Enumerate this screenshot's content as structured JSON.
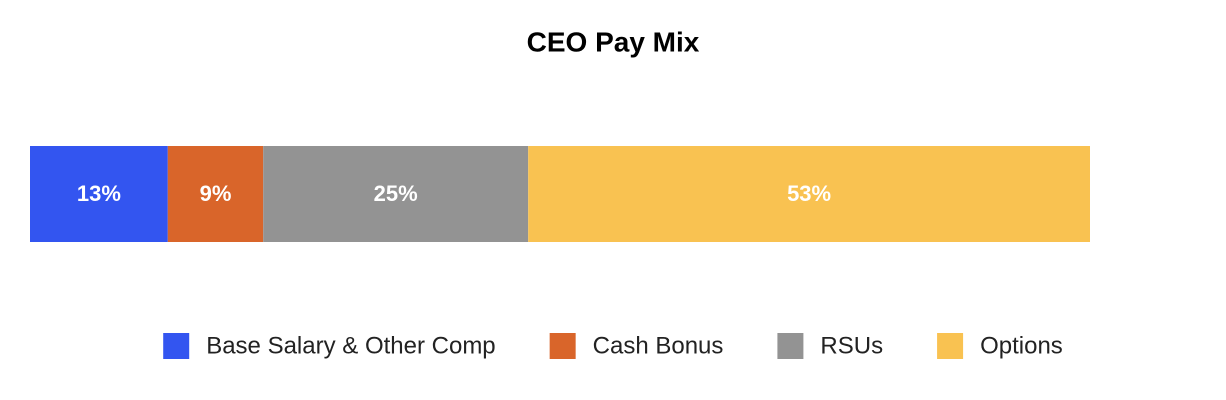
{
  "chart_data": {
    "type": "bar",
    "orientation": "horizontal",
    "stacked": true,
    "title": "CEO Pay Mix",
    "categories": [
      null
    ],
    "series": [
      {
        "name": "Base Salary & Other Comp",
        "color": "#3355f0",
        "values": [
          13
        ],
        "value_labels": [
          "13%"
        ]
      },
      {
        "name": "Cash Bonus",
        "color": "#d9652a",
        "values": [
          9
        ],
        "value_labels": [
          "9%"
        ]
      },
      {
        "name": "RSUs",
        "color": "#939393",
        "values": [
          25
        ],
        "value_labels": [
          "25%"
        ]
      },
      {
        "name": "Options",
        "color": "#f9c251",
        "values": [
          53
        ],
        "value_labels": [
          "53%"
        ]
      }
    ],
    "legend": "bottom"
  }
}
